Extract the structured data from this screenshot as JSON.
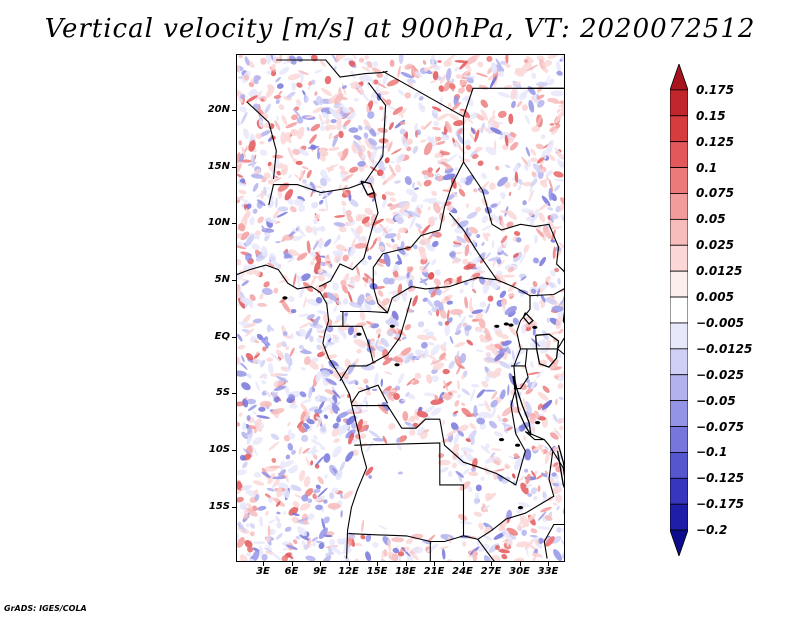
{
  "title": "Vertical velocity [m/s] at 900hPa, VT: 2020072512",
  "lat_labels": [
    "20N",
    "15N",
    "10N",
    "5N",
    "EQ",
    "5S",
    "10S",
    "15S"
  ],
  "lon_labels": [
    "3E",
    "6E",
    "9E",
    "12E",
    "15E",
    "18E",
    "21E",
    "24E",
    "27E",
    "30E",
    "33E"
  ],
  "colorbar": {
    "levels": [
      "0.175",
      "0.15",
      "0.125",
      "0.1",
      "0.075",
      "0.05",
      "0.025",
      "0.0125",
      "0.005",
      "-0.005",
      "-0.0125",
      "-0.025",
      "-0.05",
      "-0.075",
      "-0.1",
      "-0.125",
      "-0.175",
      "-0.2"
    ],
    "colors": [
      "#a8141e",
      "#c0262c",
      "#d63b3d",
      "#e3585a",
      "#ec7a7a",
      "#f39c9c",
      "#f7bcbc",
      "#fbd7d7",
      "#fdeeee",
      "#ffffff",
      "#e8e8fb",
      "#d0d0f6",
      "#b2b2ef",
      "#9494e6",
      "#7676dc",
      "#5656cf",
      "#3636be",
      "#1e1ea8",
      "#0c0c8c"
    ]
  },
  "credit": "GrADS: IGES/COLA"
}
